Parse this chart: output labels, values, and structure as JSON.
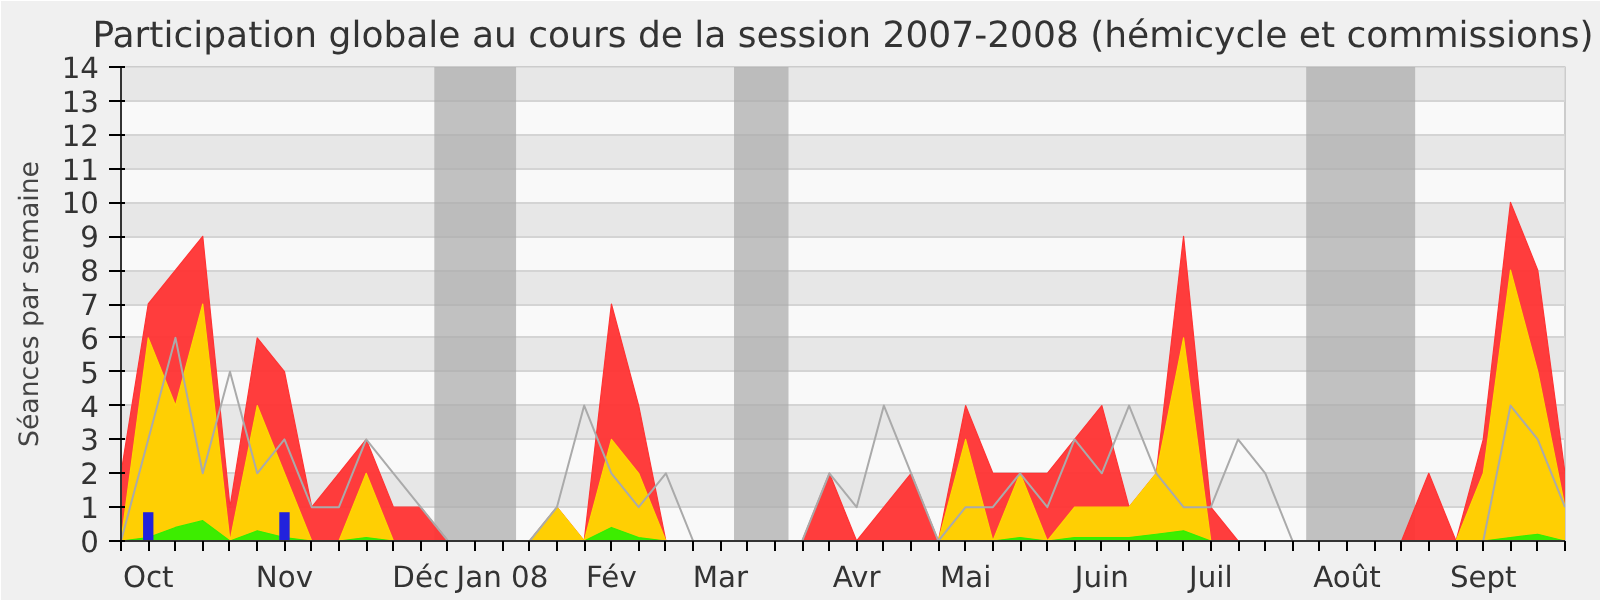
{
  "chart_data": {
    "type": "area",
    "title": "Participation globale au cours de la session 2007-2008 (hémicycle et commissions)",
    "ylabel": "Séances par semaine",
    "categories": [
      null,
      "Oct",
      null,
      null,
      null,
      null,
      "Nov",
      null,
      null,
      null,
      null,
      "Déc",
      null,
      null,
      "Jan 08",
      null,
      null,
      null,
      "Fév",
      null,
      null,
      null,
      "Mar",
      null,
      null,
      null,
      null,
      "Avr",
      null,
      null,
      null,
      "Mai",
      null,
      null,
      null,
      null,
      "Juin",
      null,
      null,
      null,
      "Juil",
      null,
      null,
      null,
      null,
      "Août",
      null,
      null,
      null,
      null,
      "Sept",
      null,
      null,
      null
    ],
    "series": [
      {
        "color": "#ff3333",
        "values": [
          2,
          7,
          8,
          9,
          1,
          6,
          5,
          1,
          2,
          3,
          1,
          1,
          0,
          0,
          0,
          0,
          1,
          0,
          7,
          4,
          0,
          0,
          0,
          0,
          0,
          0,
          2,
          0,
          1,
          2,
          0,
          4,
          2,
          2,
          2,
          3,
          4,
          1,
          2,
          9,
          1,
          0,
          0,
          0,
          0,
          0,
          0,
          0,
          2,
          0,
          3,
          10,
          8,
          2
        ]
      },
      {
        "color": "#ffd700",
        "values": [
          0,
          6,
          4,
          7,
          0,
          4,
          2,
          0,
          0,
          2,
          0,
          0,
          0,
          0,
          0,
          0,
          1,
          0,
          3,
          2,
          0,
          0,
          0,
          0,
          0,
          0,
          0,
          0,
          0,
          0,
          0,
          3,
          0,
          2,
          0,
          1,
          1,
          1,
          2,
          6,
          0,
          0,
          0,
          0,
          0,
          0,
          0,
          0,
          0,
          0,
          2,
          8,
          5,
          1
        ]
      },
      {
        "color": "#33ee00",
        "values": [
          0,
          0.1,
          0.4,
          0.6,
          0,
          0.3,
          0.1,
          0,
          0,
          0.1,
          0,
          0,
          0,
          0,
          0,
          0,
          0,
          0,
          0.4,
          0.1,
          0,
          0,
          0,
          0,
          0,
          0,
          0,
          0,
          0,
          0,
          0,
          0,
          0,
          0.1,
          0,
          0.1,
          0.1,
          0.1,
          0.2,
          0.3,
          0,
          0,
          0,
          0,
          0,
          0,
          0,
          0,
          0,
          0,
          0,
          0.1,
          0.2,
          0
        ]
      },
      {
        "type": "line",
        "color": "#aaaaaa",
        "values": [
          0,
          3,
          6,
          2,
          5,
          2,
          3,
          1,
          1,
          3,
          2,
          1,
          0,
          0,
          0,
          0,
          1,
          4,
          2,
          1,
          2,
          0,
          0,
          0,
          0,
          0,
          2,
          1,
          4,
          2,
          0,
          1,
          1,
          2,
          1,
          3,
          2,
          4,
          2,
          1,
          1,
          3,
          2,
          0,
          0,
          0,
          0,
          0,
          0,
          0,
          0,
          4,
          3,
          1
        ]
      },
      {
        "type": "bar",
        "color": "#2222dd",
        "values": [
          null,
          0.85,
          null,
          null,
          null,
          null,
          0.85,
          null,
          null,
          null,
          null,
          null,
          null,
          null,
          null,
          null,
          null,
          null,
          null,
          null,
          null,
          null,
          null,
          null,
          null,
          null,
          null,
          null,
          null,
          null,
          null,
          null,
          null,
          null,
          null,
          null,
          null,
          null,
          null,
          null,
          null,
          null,
          null,
          null,
          null,
          null,
          null,
          null,
          null,
          null,
          null,
          null,
          null,
          null
        ]
      }
    ],
    "ylim": [
      0,
      14
    ],
    "yticks": [
      0,
      1,
      2,
      3,
      4,
      5,
      6,
      7,
      8,
      9,
      10,
      11,
      12,
      13,
      14
    ],
    "grid": "y"
  }
}
